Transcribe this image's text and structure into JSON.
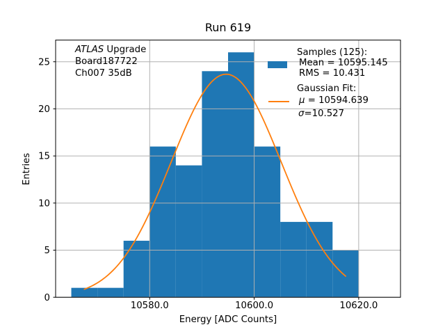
{
  "title": "Run 619",
  "axes": {
    "xlabel": "Energy [ADC Counts]",
    "ylabel": "Entries",
    "xlim": [
      10562,
      10628
    ],
    "ylim": [
      0,
      27.3
    ],
    "xticks": [
      10580,
      10600,
      10620
    ],
    "xtick_labels": [
      "10580.0",
      "10600.0",
      "10620.0"
    ],
    "yticks": [
      0,
      5,
      10,
      15,
      20,
      25
    ],
    "grid": true
  },
  "colors": {
    "bar": "#1f77b4",
    "fit_line": "#ff7f0e",
    "grid": "#b0b0b0",
    "spine": "#000000",
    "text": "#000000"
  },
  "annotation": {
    "line1_italic": "ATLAS",
    "line1_rest": " Upgrade",
    "line2": "Board187722",
    "line3": "Ch007 35dB"
  },
  "legend": {
    "samples_header": "Samples (125):",
    "mean_line": "Mean = 10595.145",
    "rms_line": "RMS = 10.431",
    "fit_header": "Gaussian Fit:",
    "mu_symbol": "μ",
    "mu_value": " = 10594.639",
    "sigma_symbol": "σ",
    "sigma_value": "=10.527",
    "swatch_color": "#1f77b4",
    "line_color": "#ff7f0e"
  },
  "chart_data": {
    "type": "bar",
    "subtype": "histogram",
    "title": "Run 619",
    "xlabel": "Energy [ADC Counts]",
    "ylabel": "Entries",
    "bin_edges": [
      10565,
      10570,
      10575,
      10580,
      10585,
      10590,
      10595,
      10600,
      10605,
      10610,
      10615,
      10620
    ],
    "counts": [
      1,
      1,
      6,
      16,
      14,
      24,
      26,
      16,
      8,
      8,
      5
    ],
    "stats": {
      "samples": 125,
      "mean": 10595.145,
      "rms": 10.431
    },
    "fit": {
      "type": "gaussian",
      "mu": 10594.639,
      "sigma": 10.527,
      "amplitude": 23.68,
      "x_range": [
        10567.5,
        10617.5
      ]
    },
    "xlim": [
      10562,
      10628
    ],
    "ylim": [
      0,
      27.3
    ],
    "grid": true,
    "legend_position": "upper-right"
  }
}
